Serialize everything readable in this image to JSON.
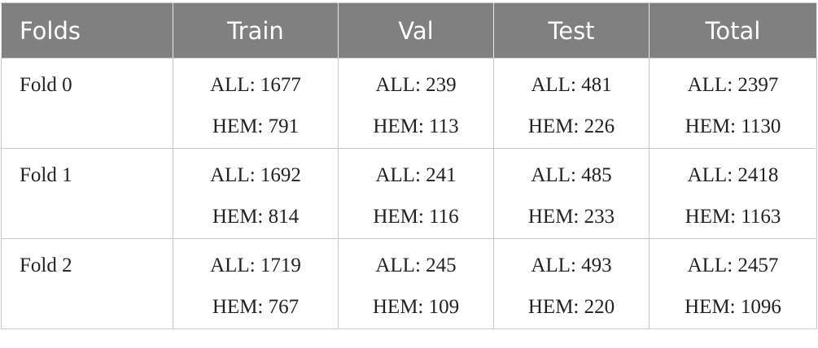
{
  "table": {
    "header": [
      "Folds",
      "Train",
      "Val",
      "Test",
      "Total"
    ],
    "rows": [
      [
        "Fold 0",
        [
          "ALL: 1677",
          "HEM: 791"
        ],
        [
          "ALL: 239",
          "HEM: 113"
        ],
        [
          "ALL: 481",
          "HEM: 226"
        ],
        [
          "ALL: 2397",
          "HEM: 1130"
        ]
      ],
      [
        "Fold 1",
        [
          "ALL: 1692",
          "HEM: 814"
        ],
        [
          "ALL: 241",
          "HEM: 116"
        ],
        [
          "ALL: 485",
          "HEM: 233"
        ],
        [
          "ALL: 2418",
          "HEM: 1163"
        ]
      ],
      [
        "Fold 2",
        [
          "ALL: 1719",
          "HEM: 767"
        ],
        [
          "ALL: 245",
          "HEM: 109"
        ],
        [
          "ALL: 493",
          "HEM: 220"
        ],
        [
          "ALL: 2457",
          "HEM: 1096"
        ]
      ]
    ]
  }
}
